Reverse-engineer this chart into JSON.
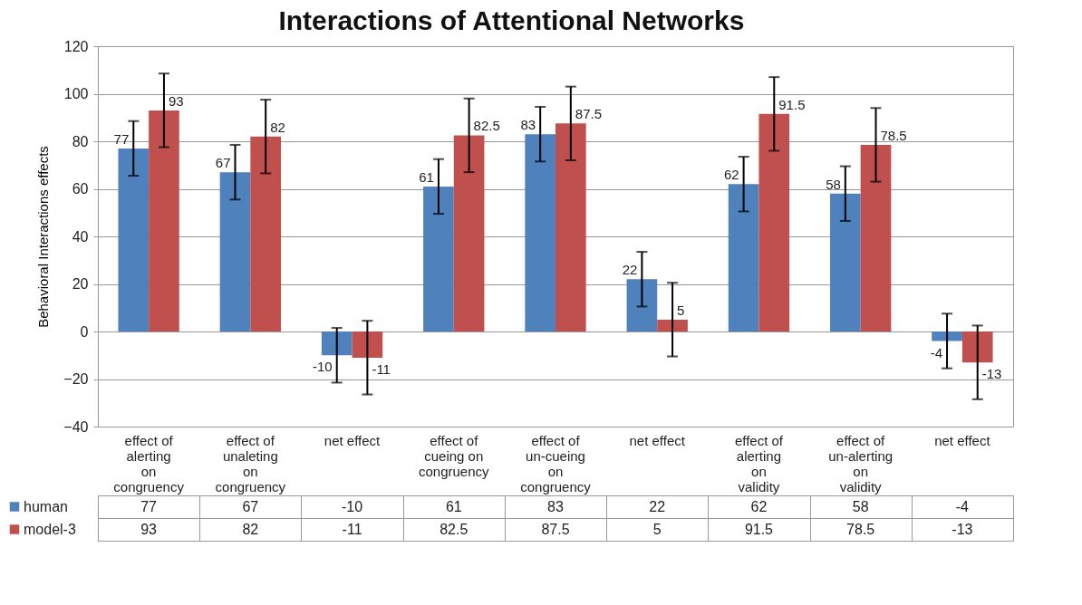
{
  "chart_data": {
    "type": "bar",
    "title": "Interactions of Attentional Networks",
    "ylabel": "Behavioral Interactions effects",
    "categories": [
      "effect of alerting on congruency",
      "effect of unaleting on congruency",
      "net effect",
      "effect of cueing on congruency",
      "effect of un-cueing on congruency",
      "net effect",
      "effect of alerting on validity",
      "effect of un-alerting on validity",
      "net effect"
    ],
    "series": [
      {
        "name": "human",
        "color": "#4f81bd",
        "values": [
          77,
          67,
          -10,
          61,
          83,
          22,
          62,
          58,
          -4
        ],
        "errors": [
          11.5,
          11.5,
          11.5,
          11.5,
          11.5,
          11.5,
          11.5,
          11.5,
          11.5
        ]
      },
      {
        "name": "model-3",
        "color": "#c0504d",
        "values": [
          93,
          82,
          -11,
          82.5,
          87.5,
          5,
          91.5,
          78.5,
          -13
        ],
        "errors": [
          15.5,
          15.5,
          15.5,
          15.5,
          15.5,
          15.5,
          15.5,
          15.5,
          15.5
        ]
      }
    ],
    "annotations": [
      {
        "text": "77",
        "x": "effect of alerting on congruency",
        "y": 77
      },
      {
        "text": "93",
        "x": "effect of alerting on congruency",
        "y": 93
      },
      {
        "text": "67",
        "x": "effect of unaleting on congruency",
        "y": 67
      },
      {
        "text": "82",
        "x": "effect of unaleting on congruency",
        "y": 82
      },
      {
        "text": "-10",
        "y": -10
      },
      {
        "text": "-11",
        "y": -11
      },
      {
        "text": "61",
        "x": "effect of cueing on congruency",
        "y": 61
      },
      {
        "text": "82.5",
        "x": "effect of cueing on congruency",
        "y": 82.5
      },
      {
        "text": "83",
        "x": "effect of un-cueing on congruency",
        "y": 83
      },
      {
        "text": "87.5",
        "x": "effect of un-cueing on congruency",
        "y": 87.5
      },
      {
        "text": "22",
        "y": 22
      },
      {
        "text": "5",
        "y": 5
      },
      {
        "text": "62",
        "x": "effect of alerting on validity",
        "y": 62
      },
      {
        "text": "91.5",
        "x": "effect of alerting on validity",
        "y": 91.5
      },
      {
        "text": "58",
        "x": "effect of un-alerting on validity",
        "y": 58
      },
      {
        "text": "78.5",
        "x": "effect of un-alerting on validity",
        "y": 78.5
      },
      {
        "text": "-4",
        "y": -4
      },
      {
        "text": "-13",
        "y": -13
      }
    ],
    "ylim": [
      -40,
      120
    ],
    "yticks": [
      -40,
      -20,
      0,
      20,
      40,
      60,
      80,
      100,
      120
    ],
    "grid": "y",
    "legend": "bottom left",
    "data_labels": true
  }
}
